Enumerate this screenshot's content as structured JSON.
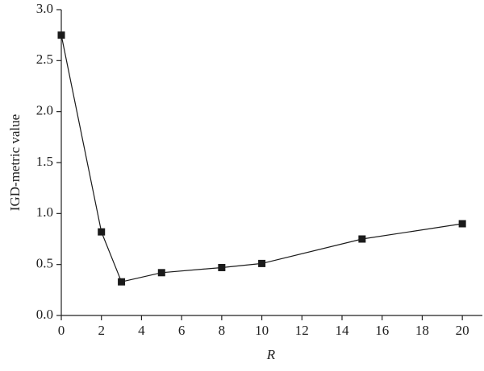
{
  "chart_data": {
    "type": "line",
    "x_label": "R",
    "y_label": "IGD-metric value",
    "x": [
      0,
      2,
      3,
      5,
      8,
      10,
      15,
      20
    ],
    "series": [
      {
        "color": "#1a1a1a",
        "values": [
          2.75,
          0.82,
          0.33,
          0.42,
          0.47,
          0.51,
          0.75,
          0.9
        ]
      }
    ],
    "xlim": [
      0,
      21
    ],
    "ylim": [
      0,
      3
    ],
    "xticks": [
      0,
      2,
      4,
      6,
      8,
      10,
      12,
      14,
      16,
      18,
      20
    ],
    "yticks": [
      {
        "value": 0,
        "label": "0.0"
      },
      {
        "value": 0.5,
        "label": "0.5"
      },
      {
        "value": 1,
        "label": "1.0"
      },
      {
        "value": 1.5,
        "label": "1.5"
      },
      {
        "value": 2,
        "label": "2.0"
      },
      {
        "value": 2.5,
        "label": "2.5"
      },
      {
        "value": 3,
        "label": "3.0"
      }
    ],
    "grid": false
  }
}
